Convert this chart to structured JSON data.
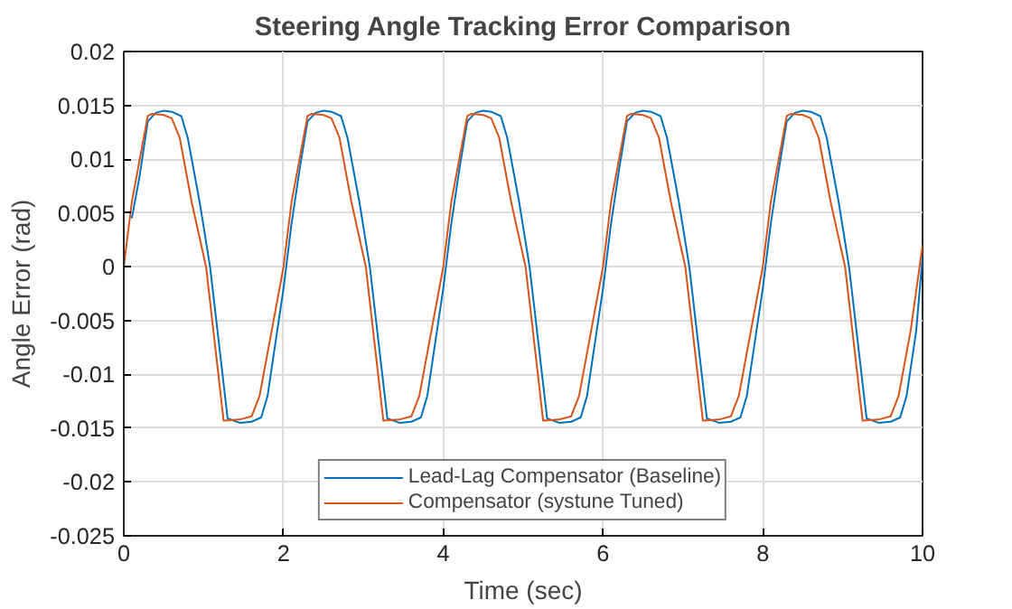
{
  "chart_data": {
    "type": "line",
    "title": "Steering Angle Tracking Error Comparison",
    "xlabel": "Time (sec)",
    "ylabel": "Angle Error (rad)",
    "xlim": [
      0,
      10
    ],
    "xticks": [
      0,
      2,
      4,
      6,
      8,
      10
    ],
    "ylim": [
      -0.025,
      0.02
    ],
    "yticks": [
      -0.025,
      -0.02,
      -0.015,
      -0.01,
      -0.005,
      0,
      0.005,
      0.01,
      0.015,
      0.02
    ],
    "grid": true,
    "legend": "bottom",
    "marker": "none",
    "line_style": "solid",
    "series": [
      {
        "name": "Lead-Lag Compensator (Baseline)",
        "color": "#0072bd",
        "x": [
          0.1,
          0.2,
          0.3,
          0.4,
          0.5,
          0.6,
          0.72,
          0.8,
          0.95,
          1.08,
          1.3,
          1.45,
          1.6,
          1.72,
          1.8,
          1.92,
          2,
          2.1,
          2.2,
          2.3,
          2.4,
          2.5,
          2.6,
          2.72,
          2.8,
          2.95,
          3.08,
          3.3,
          3.45,
          3.6,
          3.72,
          3.8,
          3.92,
          4,
          4.1,
          4.2,
          4.3,
          4.4,
          4.5,
          4.6,
          4.72,
          4.8,
          4.95,
          5.08,
          5.3,
          5.45,
          5.6,
          5.72,
          5.8,
          5.92,
          6,
          6.1,
          6.2,
          6.3,
          6.4,
          6.5,
          6.6,
          6.72,
          6.8,
          6.95,
          7.08,
          7.3,
          7.45,
          7.6,
          7.72,
          7.8,
          7.92,
          8,
          8.1,
          8.2,
          8.3,
          8.4,
          8.5,
          8.6,
          8.72,
          8.8,
          8.95,
          9.08,
          9.3,
          9.45,
          9.6,
          9.72,
          9.8,
          9.92,
          10
        ],
        "values": [
          0.0045,
          0.0085,
          0.0135,
          0.0143,
          0.0145,
          0.0144,
          0.014,
          0.012,
          0.006,
          0,
          -0.0141,
          -0.0145,
          -0.0144,
          -0.014,
          -0.012,
          -0.006,
          -0.002,
          0.004,
          0.009,
          0.0135,
          0.0143,
          0.0145,
          0.0144,
          0.014,
          0.012,
          0.006,
          0,
          -0.0141,
          -0.0145,
          -0.0144,
          -0.014,
          -0.012,
          -0.006,
          -0.002,
          0.004,
          0.009,
          0.0135,
          0.0143,
          0.0145,
          0.0144,
          0.014,
          0.012,
          0.006,
          0,
          -0.0141,
          -0.0145,
          -0.0144,
          -0.014,
          -0.012,
          -0.006,
          -0.002,
          0.004,
          0.009,
          0.0135,
          0.0143,
          0.0145,
          0.0144,
          0.014,
          0.012,
          0.006,
          0,
          -0.0141,
          -0.0145,
          -0.0144,
          -0.014,
          -0.012,
          -0.006,
          -0.002,
          0.004,
          0.009,
          0.0135,
          0.0143,
          0.0145,
          0.0144,
          0.014,
          0.012,
          0.006,
          0,
          -0.0141,
          -0.0145,
          -0.0144,
          -0.014,
          -0.012,
          -0.006,
          0.001
        ]
      },
      {
        "name": "Compensator (systune Tuned)",
        "color": "#d95319",
        "x": [
          0,
          0.1,
          0.2,
          0.3,
          0.35,
          0.5,
          0.6,
          0.7,
          0.85,
          1.03,
          1.25,
          1.45,
          1.6,
          1.7,
          1.85,
          2,
          2.1,
          2.2,
          2.3,
          2.35,
          2.5,
          2.6,
          2.7,
          2.85,
          3.03,
          3.25,
          3.45,
          3.6,
          3.7,
          3.85,
          4,
          4.1,
          4.2,
          4.3,
          4.35,
          4.5,
          4.6,
          4.7,
          4.85,
          5.03,
          5.25,
          5.45,
          5.6,
          5.7,
          5.85,
          6,
          6.1,
          6.2,
          6.3,
          6.35,
          6.5,
          6.6,
          6.7,
          6.85,
          7.03,
          7.25,
          7.45,
          7.6,
          7.7,
          7.85,
          8,
          8.1,
          8.2,
          8.3,
          8.35,
          8.5,
          8.6,
          8.7,
          8.85,
          9.03,
          9.25,
          9.45,
          9.6,
          9.7,
          9.85,
          10
        ],
        "values": [
          0,
          0.006,
          0.01,
          0.014,
          0.0142,
          0.0141,
          0.0138,
          0.012,
          0.006,
          0,
          -0.0143,
          -0.0142,
          -0.0139,
          -0.012,
          -0.006,
          0,
          0.006,
          0.01,
          0.014,
          0.0142,
          0.0141,
          0.0138,
          0.012,
          0.006,
          0,
          -0.0143,
          -0.0142,
          -0.0139,
          -0.012,
          -0.006,
          0,
          0.006,
          0.01,
          0.014,
          0.0142,
          0.0141,
          0.0138,
          0.012,
          0.006,
          0,
          -0.0143,
          -0.0142,
          -0.0139,
          -0.012,
          -0.006,
          0,
          0.006,
          0.01,
          0.014,
          0.0142,
          0.0141,
          0.0138,
          0.012,
          0.006,
          0,
          -0.0143,
          -0.0142,
          -0.0139,
          -0.012,
          -0.006,
          0,
          0.006,
          0.01,
          0.014,
          0.0142,
          0.0141,
          0.0138,
          0.012,
          0.006,
          0,
          -0.0143,
          -0.0142,
          -0.0139,
          -0.012,
          -0.006,
          0.002
        ]
      }
    ]
  }
}
